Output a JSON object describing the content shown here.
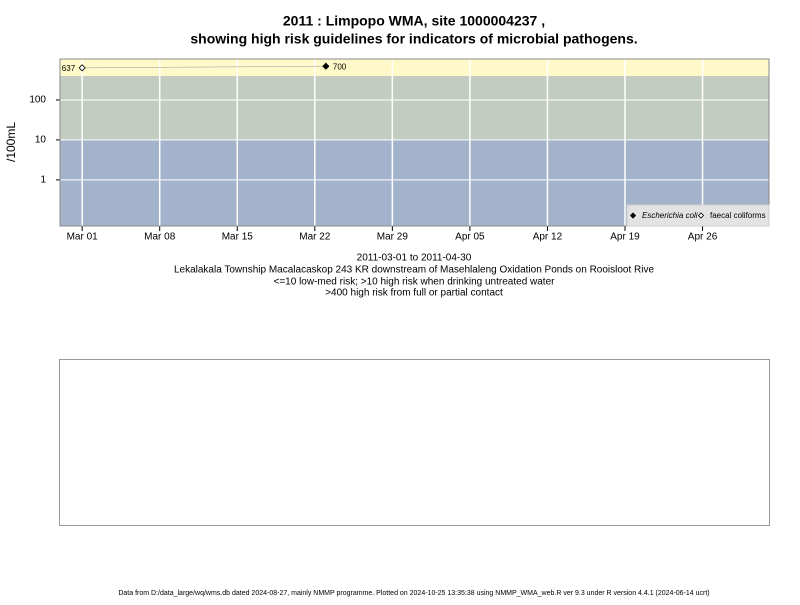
{
  "chart_data": {
    "type": "scatter",
    "title": "2011 : Limpopo WMA, site 1000004237 ,",
    "title_line2": "showing high risk guidelines for indicators of microbial pathogens.",
    "subtitle_lines": [
      "2011-03-01 to 2011-04-30",
      "Lekalakala Township Macalacaskop 243 KR downstream of Masehlaleng Oxidation Ponds on Rooisloot Rive",
      "<=10 low-med risk; >10 high risk when drinking untreated water",
      ">400 high risk from full or partial contact"
    ],
    "y_label": "/100mL",
    "log_y": true,
    "ylim": [
      0.07,
      1060
    ],
    "yticks": [
      1,
      10,
      100
    ],
    "xlim": [
      "2011-02-27",
      "2011-05-02"
    ],
    "xticks": [
      {
        "value": "2011-03-01",
        "label": "Mar 01"
      },
      {
        "value": "2011-03-08",
        "label": "Mar 08"
      },
      {
        "value": "2011-03-15",
        "label": "Mar 15"
      },
      {
        "value": "2011-03-22",
        "label": "Mar 22"
      },
      {
        "value": "2011-03-29",
        "label": "Mar 29"
      },
      {
        "value": "2011-04-05",
        "label": "Apr 05"
      },
      {
        "value": "2011-04-12",
        "label": "Apr 12"
      },
      {
        "value": "2011-04-19",
        "label": "Apr 19"
      },
      {
        "value": "2011-04-26",
        "label": "Apr 26"
      }
    ],
    "grid": true,
    "thresholds": [
      10,
      400
    ],
    "band_colors": [
      "#a3b3cb",
      "#c3ccc0",
      "#fff8c8"
    ],
    "legend": "bottom-right",
    "series": [
      {
        "name": "Escherichia coli",
        "color": "#000000",
        "filled": true,
        "x": [
          "2011-03-23"
        ],
        "values": [
          700
        ]
      },
      {
        "name": "faecal coliforms",
        "color": "#000000",
        "filled": false,
        "x": [
          "2011-03-01"
        ],
        "values": [
          637
        ]
      }
    ],
    "footer": "Data from D:/data_large/wq/wms.db dated 2024-08-27, mainly NMMP programme. Plotted on 2024-10-25 13:35:38 using NMMP_WMA_web.R ver 9.3 under R version 4.4.1 (2024-06-14 ucrt)"
  }
}
